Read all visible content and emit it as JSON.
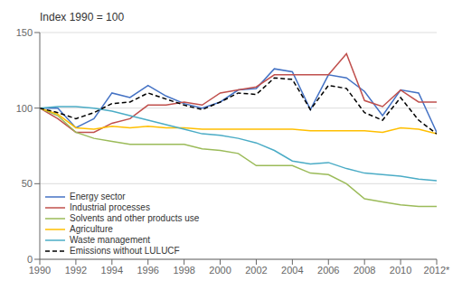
{
  "chart_data": {
    "type": "line",
    "title": "Index 1990 = 100",
    "x": [
      1990,
      1991,
      1992,
      1993,
      1994,
      1995,
      1996,
      1997,
      1998,
      1999,
      2000,
      2001,
      2002,
      2003,
      2004,
      2005,
      2006,
      2007,
      2008,
      2009,
      2010,
      2011,
      2012
    ],
    "series": [
      {
        "name": "Energy sector",
        "color": "#4472C4",
        "values": [
          100,
          100,
          87,
          93,
          110,
          107,
          115,
          108,
          103,
          100,
          104,
          112,
          113,
          126,
          124,
          99,
          122,
          120,
          111,
          95,
          112,
          110,
          84
        ]
      },
      {
        "name": "Industrial processes",
        "color": "#C0504D",
        "values": [
          100,
          93,
          84,
          84,
          90,
          93,
          102,
          102,
          104,
          102,
          110,
          112,
          114,
          122,
          122,
          122,
          122,
          136,
          105,
          101,
          112,
          104,
          104
        ]
      },
      {
        "name": "Solvents and other products use",
        "color": "#9BBB59",
        "values": [
          100,
          95,
          84,
          80,
          78,
          76,
          76,
          76,
          76,
          73,
          72,
          70,
          62,
          62,
          62,
          57,
          56,
          50,
          40,
          38,
          36,
          35,
          35
        ]
      },
      {
        "name": "Agriculture",
        "color": "#FFBF00",
        "values": [
          100,
          96,
          87,
          86,
          88,
          87,
          88,
          87,
          87,
          86,
          86,
          86,
          86,
          86,
          86,
          85,
          85,
          85,
          85,
          84,
          87,
          86,
          83
        ]
      },
      {
        "name": "Waste management",
        "color": "#4BACC6",
        "values": [
          100,
          101,
          101,
          100,
          98,
          95,
          92,
          89,
          86,
          83,
          82,
          80,
          77,
          72,
          65,
          63,
          64,
          60,
          57,
          56,
          55,
          53,
          52
        ]
      },
      {
        "name": "Emissions without LULUCF",
        "color": "#000000",
        "line_style": "dashed",
        "values": [
          100,
          97,
          93,
          97,
          103,
          104,
          110,
          106,
          102,
          99,
          104,
          110,
          109,
          120,
          119,
          99,
          115,
          113,
          97,
          92,
          107,
          92,
          83
        ]
      }
    ],
    "xlim": [
      1990,
      2012
    ],
    "xticks": [
      1990,
      1992,
      1994,
      1996,
      1998,
      2000,
      2002,
      2004,
      2006,
      2008,
      2010,
      {
        "value": 2012,
        "label": "2012*"
      }
    ],
    "ylim": [
      0,
      150
    ],
    "yticks": [
      0,
      50,
      100,
      150
    ],
    "grid": true,
    "legend": "lower left"
  }
}
